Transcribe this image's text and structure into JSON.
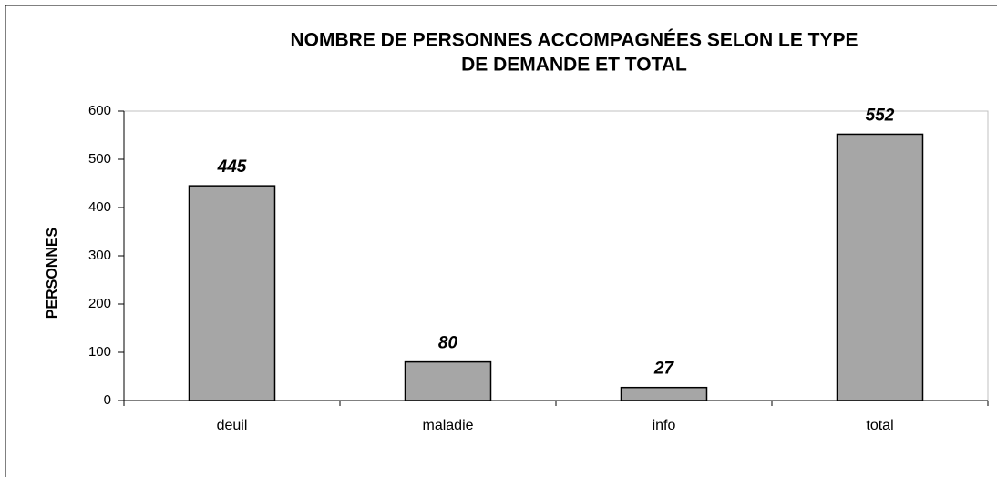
{
  "chart_data": {
    "type": "bar",
    "title": [
      "NOMBRE DE PERSONNES ACCOMPAGNÉES SELON LE TYPE",
      "DE DEMANDE ET TOTAL"
    ],
    "y_label": "PERSONNES",
    "categories": [
      "deuil",
      "maladie",
      "info",
      "total"
    ],
    "values": [
      445,
      80,
      27,
      552
    ],
    "color": "#a6a6a6",
    "ylim": [
      0,
      600
    ],
    "yticks": [
      0,
      100,
      200,
      300,
      400,
      500,
      600
    ],
    "data_labels": true
  }
}
